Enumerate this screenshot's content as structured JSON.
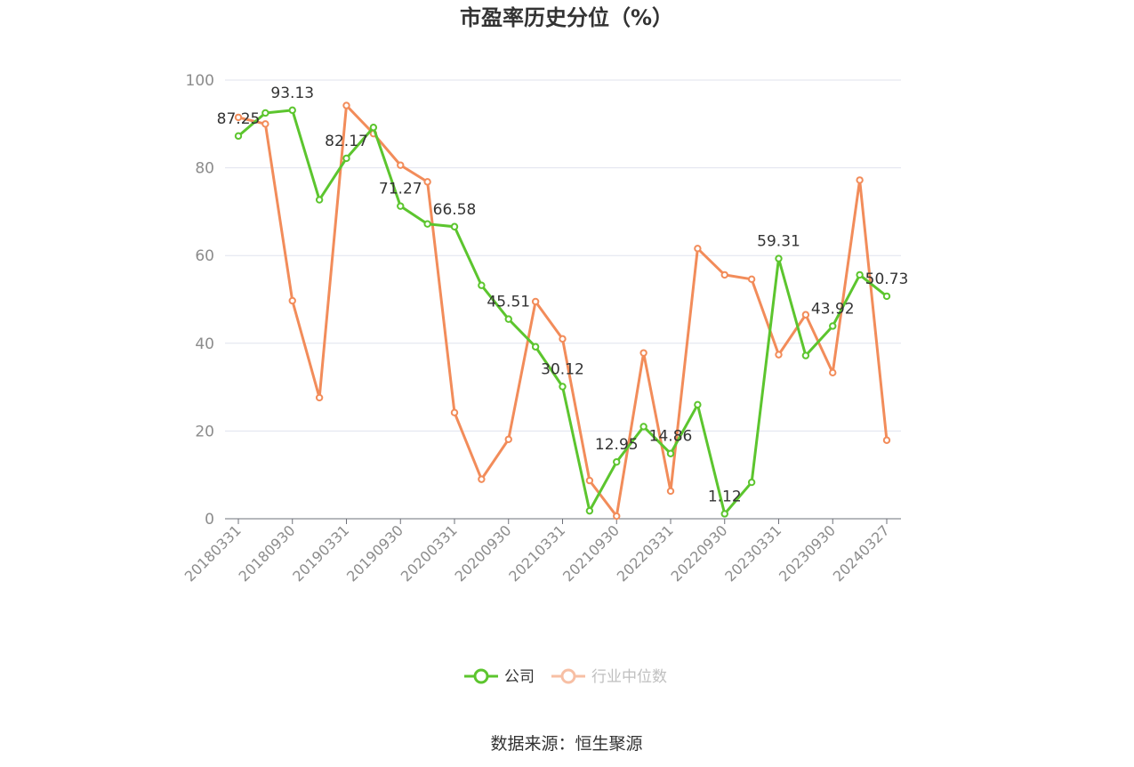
{
  "chart_data": {
    "type": "line",
    "title": "市盈率历史分位（%）",
    "ylim": [
      0,
      100
    ],
    "yticks": [
      0,
      20,
      40,
      60,
      80,
      100
    ],
    "grid": true,
    "legend_position": "bottom",
    "x": [
      "20180331",
      "20180630",
      "20180930",
      "20181231",
      "20190331",
      "20190630",
      "20190930",
      "20191231",
      "20200331",
      "20200630",
      "20200930",
      "20201231",
      "20210331",
      "20210630",
      "20210930",
      "20211231",
      "20220331",
      "20220630",
      "20220930",
      "20221231",
      "20230331",
      "20230630",
      "20230930",
      "20231231",
      "20240327"
    ],
    "xtick_labels": [
      "20180331",
      "20180930",
      "20190331",
      "20190930",
      "20200331",
      "20200930",
      "20210331",
      "20210930",
      "20220331",
      "20220930",
      "20230331",
      "20230930",
      "20240327"
    ],
    "xtick_index": [
      0,
      2,
      4,
      6,
      8,
      10,
      12,
      14,
      16,
      18,
      20,
      22,
      24
    ],
    "series": [
      {
        "name": "公司",
        "color": "#5cc52e",
        "values": [
          87.25,
          92.5,
          93.13,
          72.7,
          82.17,
          89.2,
          71.27,
          67.2,
          66.58,
          53.2,
          45.51,
          39.2,
          30.12,
          1.8,
          12.95,
          21.0,
          14.86,
          26.0,
          1.12,
          8.3,
          59.31,
          37.2,
          43.92,
          55.6,
          50.73
        ],
        "labels": {
          "0": "87.25",
          "2": "93.13",
          "4": "82.17",
          "6": "71.27",
          "8": "66.58",
          "10": "45.51",
          "12": "30.12",
          "14": "12.95",
          "16": "14.86",
          "18": "1.12",
          "20": "59.31",
          "22": "43.92",
          "24": "50.73"
        }
      },
      {
        "name": "行业中位数",
        "color": "#f28c5a",
        "values": [
          91.5,
          90.0,
          49.7,
          27.6,
          94.2,
          87.8,
          80.6,
          76.8,
          24.2,
          9.0,
          18.1,
          49.5,
          41.0,
          8.7,
          0.6,
          37.8,
          6.3,
          61.6,
          55.6,
          54.6,
          37.4,
          46.5,
          33.3,
          77.2,
          17.9
        ]
      }
    ]
  },
  "source": "数据来源：恒生聚源"
}
